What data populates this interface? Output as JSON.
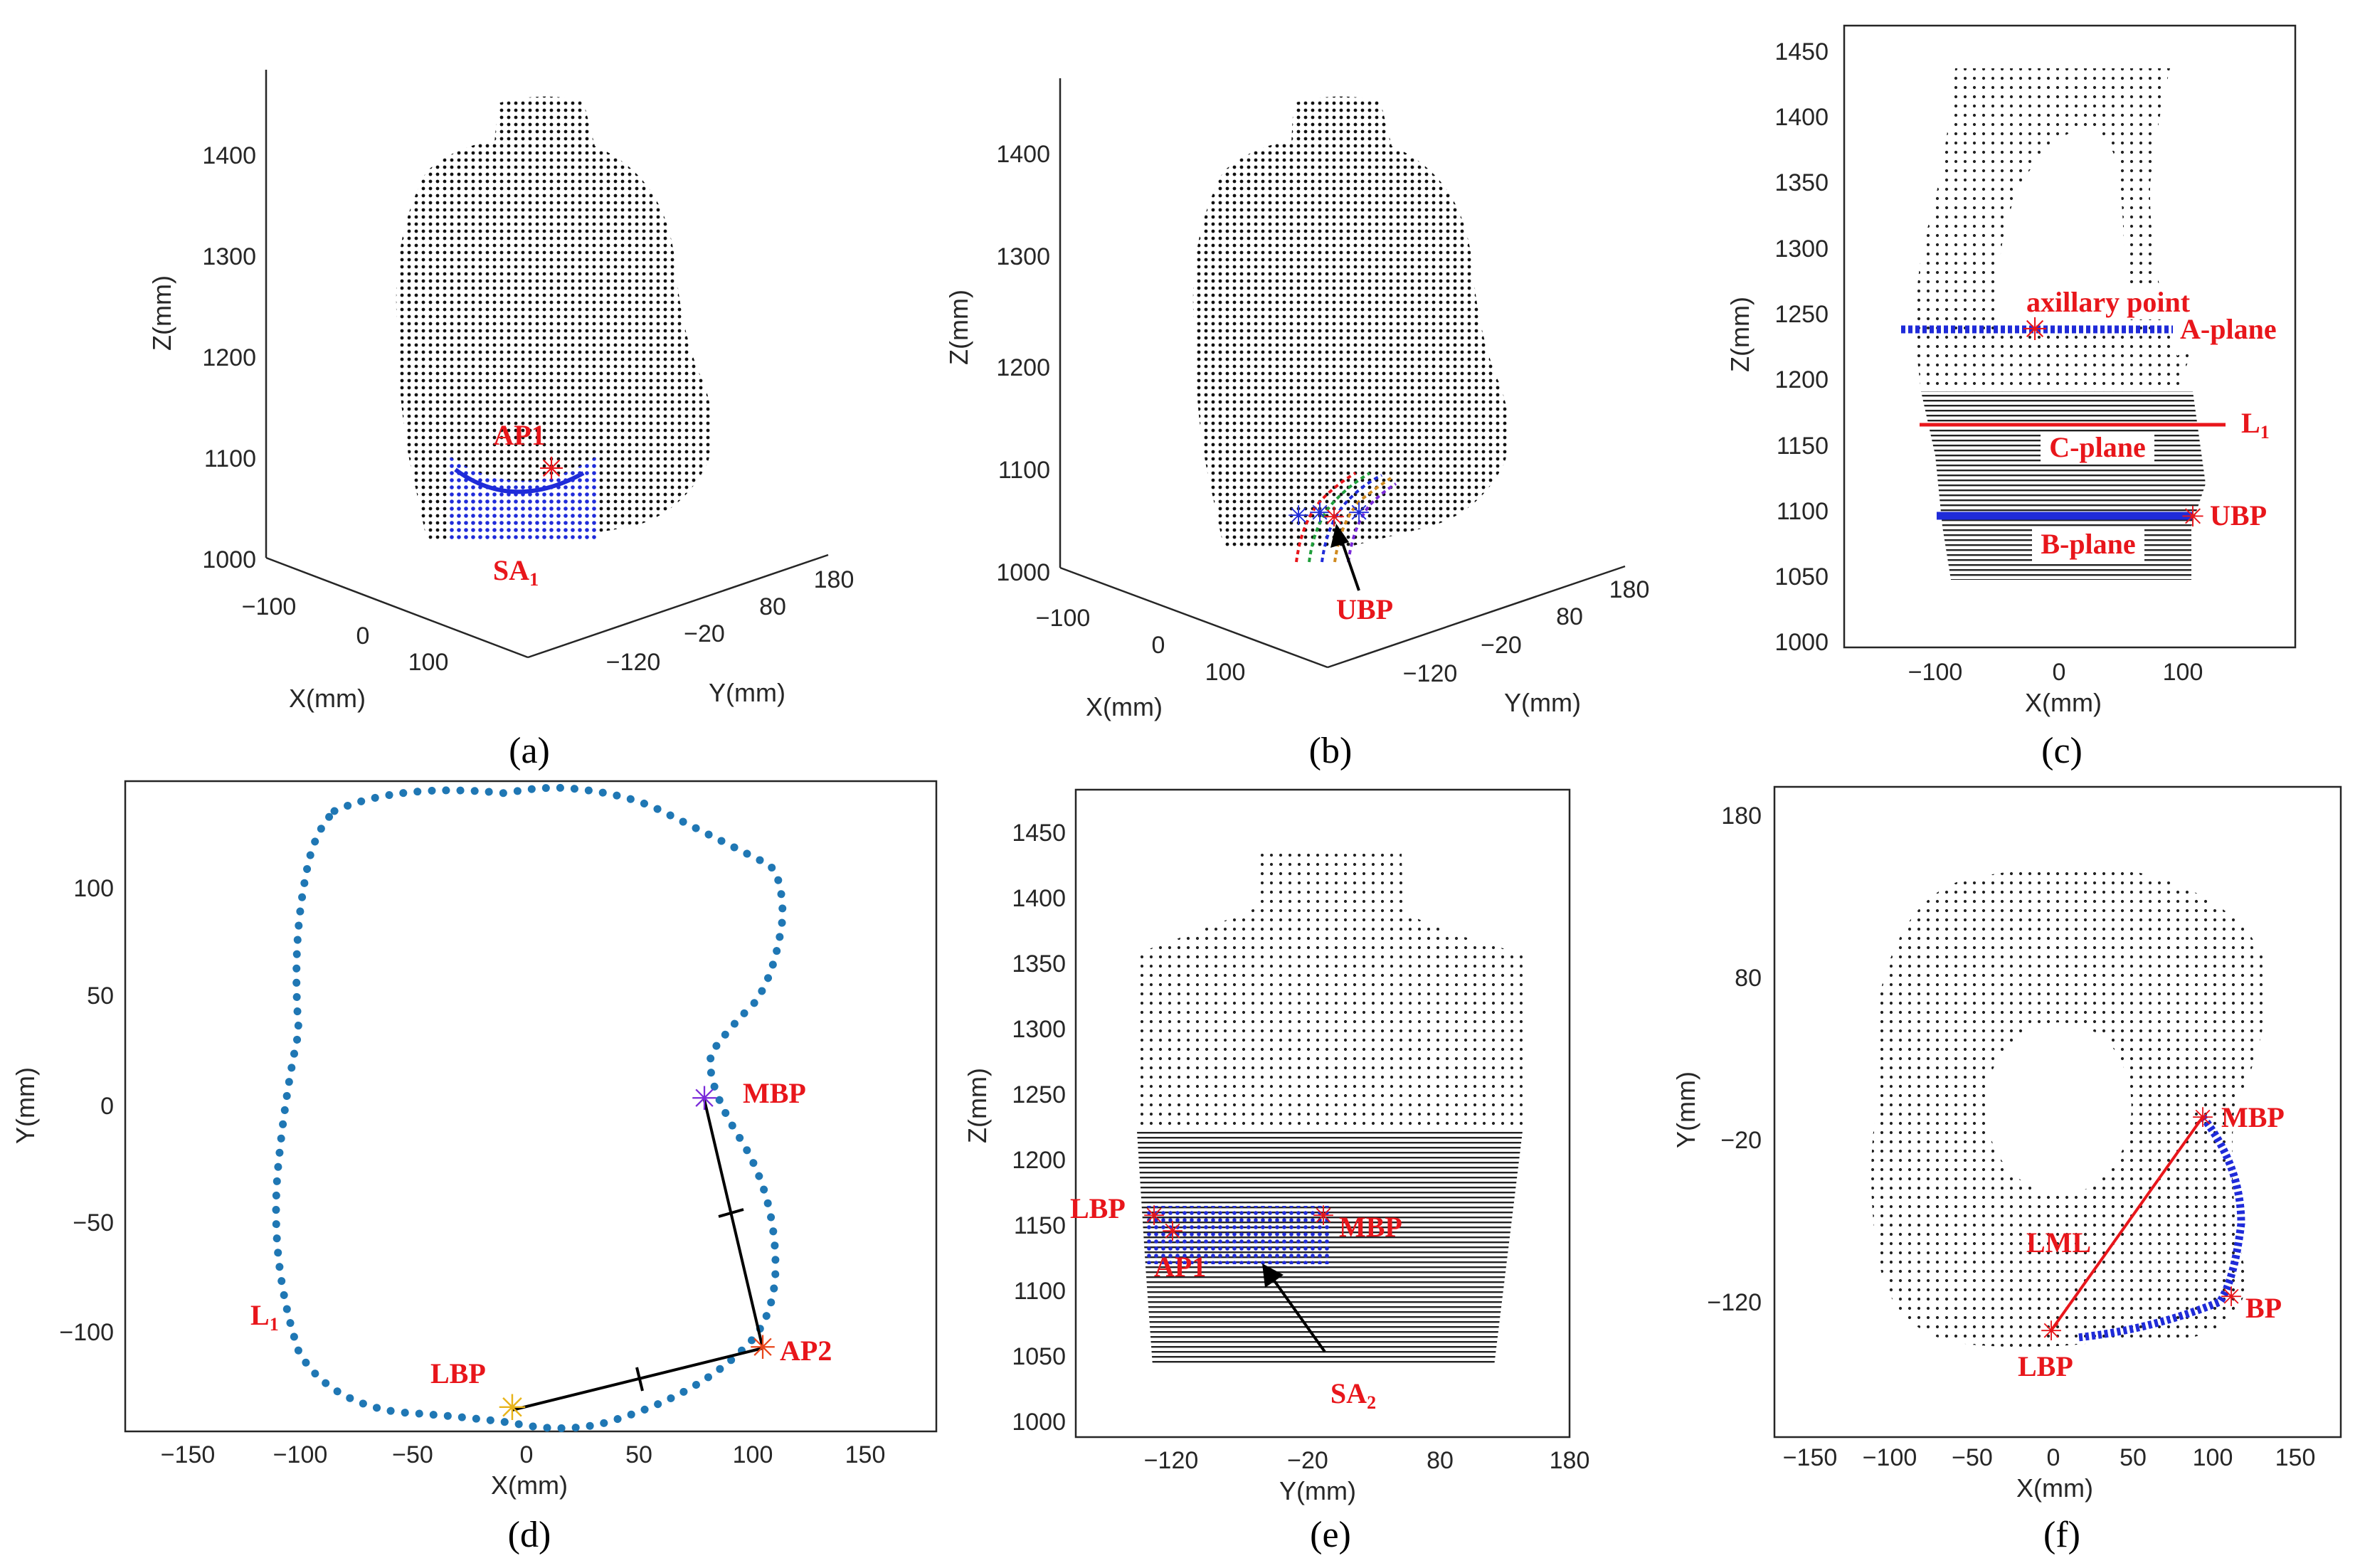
{
  "figure": {
    "captions": [
      "(a)",
      "(b)",
      "(c)",
      "(d)",
      "(e)",
      "(f)"
    ]
  },
  "panel_a": {
    "zlabel": "Z(mm)",
    "xlabel": "X(mm)",
    "ylabel": "Y(mm)",
    "z_ticks": [
      "1400",
      "1300",
      "1200",
      "1100",
      "1000"
    ],
    "x_ticks": [
      "−100",
      "0",
      "100"
    ],
    "y_ticks": [
      "−120",
      "−20",
      "80",
      "180"
    ],
    "annotations": {
      "ap1": "AP1",
      "sa1_base": "SA",
      "sa1_sub": "1"
    }
  },
  "panel_b": {
    "zlabel": "Z(mm)",
    "xlabel": "X(mm)",
    "ylabel": "Y(mm)",
    "z_ticks": [
      "1400",
      "1300",
      "1200",
      "1100",
      "1000"
    ],
    "x_ticks": [
      "−100",
      "0",
      "100"
    ],
    "y_ticks": [
      "−120",
      "−20",
      "80",
      "180"
    ],
    "annotations": {
      "ubp": "UBP"
    }
  },
  "panel_c": {
    "ylabel": "Z(mm)",
    "xlabel": "X(mm)",
    "y_ticks": [
      "1450",
      "1400",
      "1350",
      "1300",
      "1250",
      "1200",
      "1150",
      "1100",
      "1050",
      "1000"
    ],
    "x_ticks": [
      "−100",
      "0",
      "100"
    ],
    "annotations": {
      "axillary_point": "axillary point",
      "a_plane": "A-plane",
      "l1_base": "L",
      "l1_sub": "1",
      "c_plane": "C-plane",
      "ubp": "UBP",
      "b_plane": "B-plane"
    }
  },
  "panel_d": {
    "ylabel": "Y(mm)",
    "xlabel": "X(mm)",
    "y_ticks": [
      "100",
      "50",
      "0",
      "−50",
      "−100"
    ],
    "x_ticks": [
      "−150",
      "−100",
      "−50",
      "0",
      "50",
      "100",
      "150"
    ],
    "annotations": {
      "mbp": "MBP",
      "ap2": "AP2",
      "lbp": "LBP",
      "l1_base": "L",
      "l1_sub": "1"
    }
  },
  "panel_e": {
    "ylabel": "Z(mm)",
    "xlabel": "Y(mm)",
    "y_ticks": [
      "1450",
      "1400",
      "1350",
      "1300",
      "1250",
      "1200",
      "1150",
      "1100",
      "1050",
      "1000"
    ],
    "x_ticks": [
      "−120",
      "−20",
      "80",
      "180"
    ],
    "annotations": {
      "lbp": "LBP",
      "mbp": "MBP",
      "ap1": "AP1",
      "sa2_base": "SA",
      "sa2_sub": "2"
    }
  },
  "panel_f": {
    "ylabel": "Y(mm)",
    "xlabel": "X(mm)",
    "y_ticks": [
      "180",
      "80",
      "−20",
      "−120"
    ],
    "x_ticks": [
      "−150",
      "−100",
      "−50",
      "0",
      "50",
      "100",
      "150"
    ],
    "annotations": {
      "mbp": "MBP",
      "lml": "LML",
      "bp": "BP",
      "lbp": "LBP"
    }
  },
  "chart_data": [
    {
      "type": "scatter",
      "panel": "(a)",
      "projection": "3d",
      "zlabel": "Z(mm)",
      "xlabel": "X(mm)",
      "ylabel": "Y(mm)",
      "zlim": [
        1000,
        1450
      ],
      "xlim": [
        -100,
        100
      ],
      "ylim": [
        -120,
        180
      ],
      "series": [
        {
          "name": "SA1",
          "color": "#1f2bd9"
        },
        {
          "color": "#000000"
        }
      ]
    },
    {
      "type": "scatter",
      "panel": "(b)",
      "projection": "3d",
      "zlabel": "Z(mm)",
      "xlabel": "X(mm)",
      "ylabel": "Y(mm)",
      "zlim": [
        1000,
        1450
      ],
      "xlim": [
        -100,
        100
      ],
      "ylim": [
        -120,
        180
      ]
    },
    {
      "type": "scatter",
      "panel": "(c)",
      "xlabel": "X(mm)",
      "ylabel": "Z(mm)",
      "xlim": [
        -170,
        185
      ],
      "ylim": [
        995,
        1460
      ],
      "lines": [
        {
          "name": "A-plane",
          "z": 1237,
          "x": [
            -115,
            90
          ],
          "color": "#1f2bd9"
        },
        {
          "name": "L1",
          "z": 1165,
          "x": [
            -108,
            128
          ],
          "color": "#e8161b"
        },
        {
          "name": "B-plane",
          "z": 1095,
          "x": [
            -92,
            103
          ],
          "color": "#1f2bd9"
        }
      ],
      "points": [
        {
          "name": "axillary point",
          "x": -18,
          "z": 1237
        },
        {
          "name": "UBP",
          "x": 103,
          "z": 1095
        }
      ]
    },
    {
      "type": "line",
      "panel": "(d)",
      "style": "dotted",
      "xlabel": "X(mm)",
      "ylabel": "Y(mm)",
      "xlim": [
        -180,
        180
      ],
      "ylim": [
        -145,
        140
      ],
      "series": [
        {
          "name": "L1",
          "color": "#1f77b4",
          "x": [
            -107,
            -40,
            5,
            35,
            80,
            100,
            107,
            95,
            77,
            90,
            100,
            98,
            50,
            30,
            -5,
            -80,
            -107
          ],
          "y": [
            -60,
            133,
            135,
            140,
            130,
            110,
            90,
            35,
            5,
            -25,
            -55,
            -100,
            -130,
            -140,
            -135,
            -90,
            -60
          ]
        }
      ],
      "points": [
        {
          "name": "MBP",
          "x": 78,
          "y": 5
        },
        {
          "name": "AP2",
          "x": 103,
          "y": -105
        },
        {
          "name": "LBP",
          "x": -7,
          "y": -133
        }
      ]
    },
    {
      "type": "scatter",
      "panel": "(e)",
      "xlabel": "Y(mm)",
      "ylabel": "Z(mm)",
      "xlim": [
        -180,
        185
      ],
      "ylim": [
        995,
        1460
      ],
      "points": [
        {
          "name": "LBP",
          "y": -127,
          "z": 1155
        },
        {
          "name": "MBP",
          "y": -13,
          "z": 1155
        },
        {
          "name": "AP1",
          "y": -117,
          "z": 1145
        }
      ]
    },
    {
      "type": "scatter",
      "panel": "(f)",
      "xlabel": "X(mm)",
      "ylabel": "Y(mm)",
      "xlim": [
        -180,
        185
      ],
      "ylim": [
        -170,
        195
      ],
      "lines": [
        {
          "name": "LML",
          "x": [
            -3,
            92
          ],
          "y": [
            -136,
            -10
          ],
          "color": "#e8161b"
        }
      ],
      "points": [
        {
          "name": "MBP",
          "x": 92,
          "y": -10
        },
        {
          "name": "BP",
          "x": 112,
          "y": -120
        },
        {
          "name": "LBP",
          "x": -3,
          "y": -136
        }
      ]
    }
  ]
}
